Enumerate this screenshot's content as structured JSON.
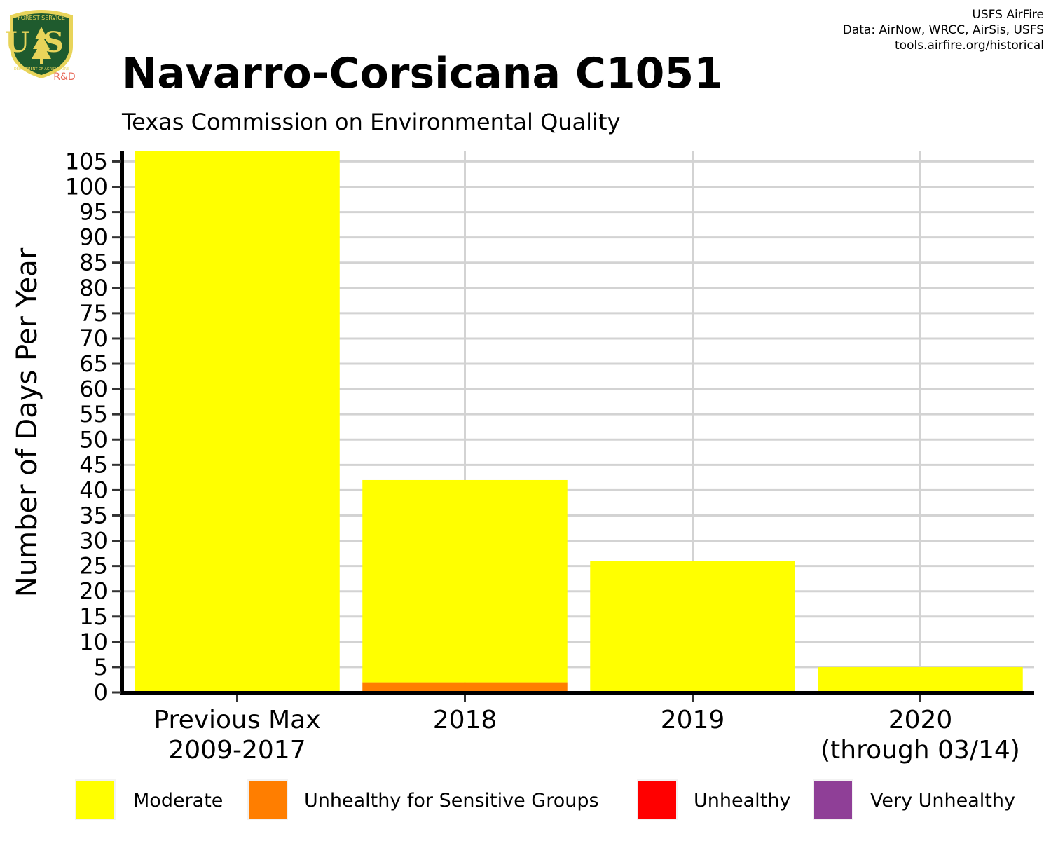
{
  "header": {
    "title": "Navarro-Corsicana C1051",
    "subtitle": "Texas Commission on Environmental Quality",
    "credits": [
      "USFS AirFire",
      "Data: AirNow, WRCC, AirSis, USFS",
      "tools.airfire.org/historical"
    ]
  },
  "logo": {
    "top_text": "FOREST SERVICE",
    "letters": "US",
    "bottom_text": "DEPARTMENT OF AGRICULTURE",
    "badge": "R&D",
    "colors": {
      "shield": "#1f5b2e",
      "trim": "#e8d45a",
      "badge": "#e86a5a"
    }
  },
  "chart_data": {
    "type": "bar",
    "stacked": true,
    "ylabel": "Number of Days Per Year",
    "ylim": [
      0,
      107
    ],
    "yticks": [
      0,
      5,
      10,
      15,
      20,
      25,
      30,
      35,
      40,
      45,
      50,
      55,
      60,
      65,
      70,
      75,
      80,
      85,
      90,
      95,
      100,
      105
    ],
    "grid": true,
    "legend_position": "bottom",
    "categories": [
      [
        "Previous Max",
        "2009-2017"
      ],
      [
        "2018"
      ],
      [
        "2019"
      ],
      [
        "2020",
        "(through 03/14)"
      ]
    ],
    "series": [
      {
        "name": "Moderate",
        "color": "#ffff00",
        "values": [
          107,
          40,
          26,
          5
        ]
      },
      {
        "name": "Unhealthy for Sensitive Groups",
        "color": "#ff7e00",
        "values": [
          0,
          2,
          0,
          0
        ]
      },
      {
        "name": "Unhealthy",
        "color": "#ff0000",
        "values": [
          0,
          0,
          0,
          0
        ]
      },
      {
        "name": "Very Unhealthy",
        "color": "#8f3f97",
        "values": [
          0,
          0,
          0,
          0
        ]
      }
    ]
  }
}
